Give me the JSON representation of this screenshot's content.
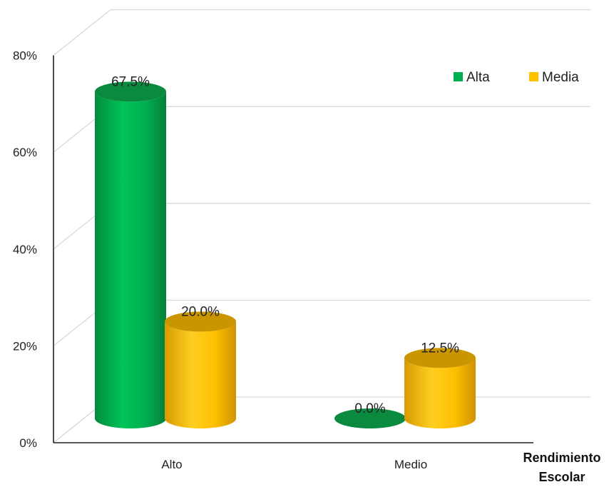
{
  "chart_data": {
    "type": "bar",
    "style": "3d-cylinder",
    "title": "",
    "xlabel": "Rendimiento Escolar",
    "xlabel_lines": [
      "Rendimiento",
      "Escolar"
    ],
    "ylabel": "",
    "ylim": [
      0,
      80
    ],
    "yticks": [
      0,
      20,
      40,
      60,
      80
    ],
    "ytick_labels": [
      "0%",
      "20%",
      "40%",
      "60%",
      "80%"
    ],
    "categories": [
      "Alto",
      "Medio"
    ],
    "series": [
      {
        "name": "Alta",
        "values": [
          67.5,
          0.0
        ],
        "labels": [
          "67.5%",
          "0.0%"
        ],
        "color": "#00b050"
      },
      {
        "name": "Media",
        "values": [
          20.0,
          12.5
        ],
        "labels": [
          "20.0%",
          "12.5%"
        ],
        "color": "#ffc000"
      }
    ],
    "legend": "top-right",
    "grid": true
  }
}
